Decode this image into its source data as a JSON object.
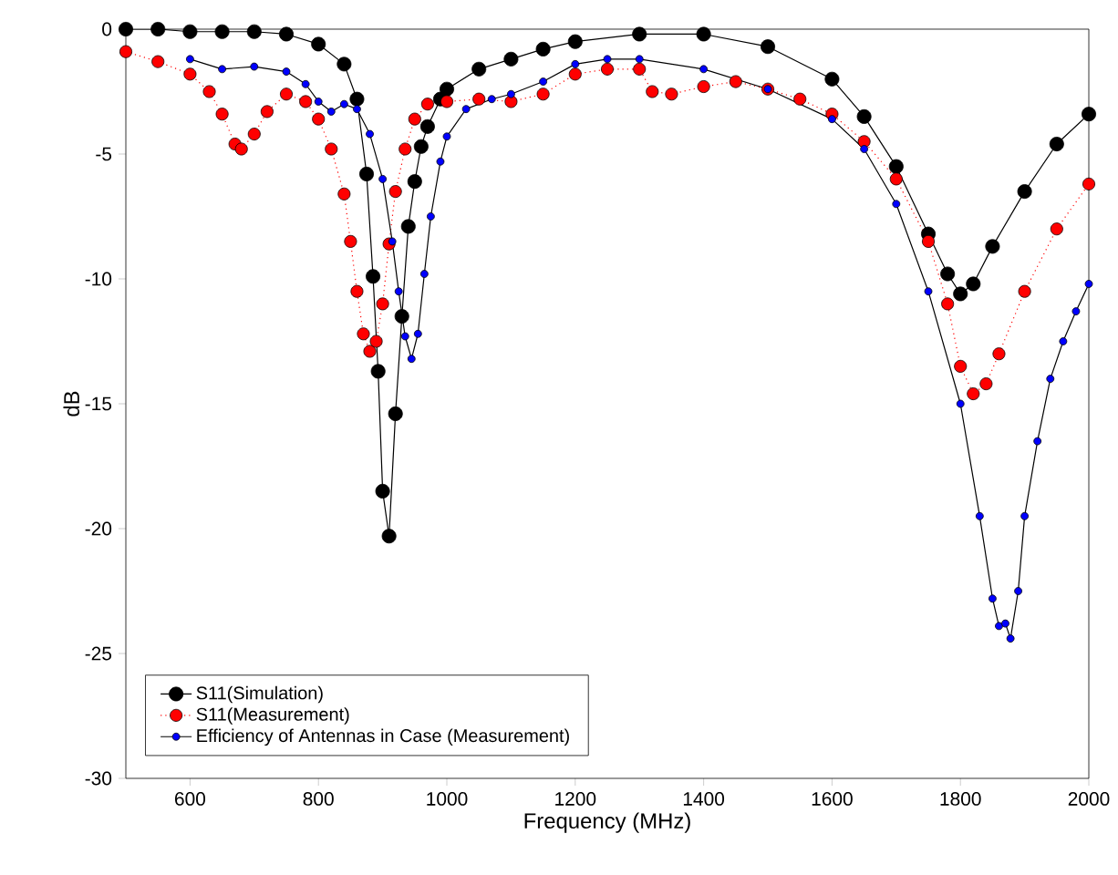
{
  "chart_data": {
    "type": "line",
    "xlabel": "Frequency (MHz)",
    "ylabel": "dB",
    "xlim": [
      500,
      2000
    ],
    "ylim": [
      -30,
      0
    ],
    "xticks": [
      600,
      800,
      1000,
      1200,
      1400,
      1600,
      1800,
      2000
    ],
    "yticks": [
      -30,
      -25,
      -20,
      -15,
      -10,
      -5,
      0
    ],
    "grid": false,
    "legend": "bottom left",
    "marker": "circle",
    "series": [
      {
        "name": "S11(Simulation)",
        "color": "#000000",
        "line_style": "solid",
        "x": [
          500,
          550,
          600,
          650,
          700,
          750,
          800,
          840,
          860,
          875,
          885,
          893,
          900,
          910,
          920,
          930,
          940,
          950,
          960,
          970,
          990,
          1000,
          1050,
          1100,
          1150,
          1200,
          1300,
          1400,
          1500,
          1600,
          1650,
          1700,
          1750,
          1780,
          1800,
          1820,
          1850,
          1900,
          1950,
          2000
        ],
        "values": [
          0,
          0,
          -0.1,
          -0.1,
          -0.1,
          -0.2,
          -0.6,
          -1.4,
          -2.8,
          -5.8,
          -9.9,
          -13.7,
          -18.5,
          -20.3,
          -15.4,
          -11.5,
          -7.9,
          -6.1,
          -4.7,
          -3.9,
          -2.8,
          -2.4,
          -1.6,
          -1.2,
          -0.8,
          -0.5,
          -0.2,
          -0.2,
          -0.7,
          -2.0,
          -3.5,
          -5.5,
          -8.2,
          -9.8,
          -10.6,
          -10.2,
          -8.7,
          -6.5,
          -4.6,
          -3.4
        ]
      },
      {
        "name": "S11(Measurement)",
        "color": "#ff0000",
        "line_style": "dotted",
        "x": [
          500,
          550,
          600,
          630,
          650,
          670,
          680,
          700,
          720,
          750,
          780,
          800,
          820,
          840,
          850,
          860,
          870,
          880,
          890,
          900,
          910,
          920,
          935,
          950,
          970,
          1000,
          1050,
          1100,
          1150,
          1200,
          1250,
          1300,
          1320,
          1350,
          1400,
          1450,
          1500,
          1550,
          1600,
          1650,
          1700,
          1750,
          1780,
          1800,
          1820,
          1840,
          1860,
          1900,
          1950,
          2000
        ],
        "values": [
          -0.9,
          -1.3,
          -1.8,
          -2.5,
          -3.4,
          -4.6,
          -4.8,
          -4.2,
          -3.3,
          -2.6,
          -2.9,
          -3.6,
          -4.8,
          -6.6,
          -8.5,
          -10.5,
          -12.2,
          -12.9,
          -12.5,
          -11.0,
          -8.6,
          -6.5,
          -4.8,
          -3.6,
          -3.0,
          -2.9,
          -2.8,
          -2.9,
          -2.6,
          -1.8,
          -1.6,
          -1.6,
          -2.5,
          -2.6,
          -2.3,
          -2.1,
          -2.4,
          -2.8,
          -3.4,
          -4.5,
          -6.0,
          -8.5,
          -11.0,
          -13.5,
          -14.6,
          -14.2,
          -13.0,
          -10.5,
          -8.0,
          -6.2
        ]
      },
      {
        "name": "Efficiency of Antennas in Case (Measurement)",
        "color": "#0000ff",
        "line_style": "solid",
        "x": [
          600,
          650,
          700,
          750,
          780,
          800,
          820,
          840,
          860,
          880,
          900,
          915,
          925,
          935,
          945,
          955,
          965,
          975,
          990,
          1000,
          1030,
          1070,
          1100,
          1150,
          1200,
          1250,
          1300,
          1400,
          1500,
          1600,
          1650,
          1700,
          1750,
          1800,
          1830,
          1850,
          1860,
          1870,
          1878,
          1890,
          1900,
          1920,
          1940,
          1960,
          1980,
          2000
        ],
        "values": [
          -1.2,
          -1.6,
          -1.5,
          -1.7,
          -2.2,
          -2.9,
          -3.3,
          -3.0,
          -3.2,
          -4.2,
          -6.0,
          -8.5,
          -10.5,
          -12.3,
          -13.2,
          -12.2,
          -9.8,
          -7.5,
          -5.3,
          -4.3,
          -3.2,
          -2.8,
          -2.6,
          -2.1,
          -1.4,
          -1.2,
          -1.2,
          -1.6,
          -2.4,
          -3.6,
          -4.8,
          -7.0,
          -10.5,
          -15.0,
          -19.5,
          -22.8,
          -23.9,
          -23.8,
          -24.4,
          -22.5,
          -19.5,
          -16.5,
          -14.0,
          -12.5,
          -11.3,
          -10.2
        ]
      }
    ]
  }
}
